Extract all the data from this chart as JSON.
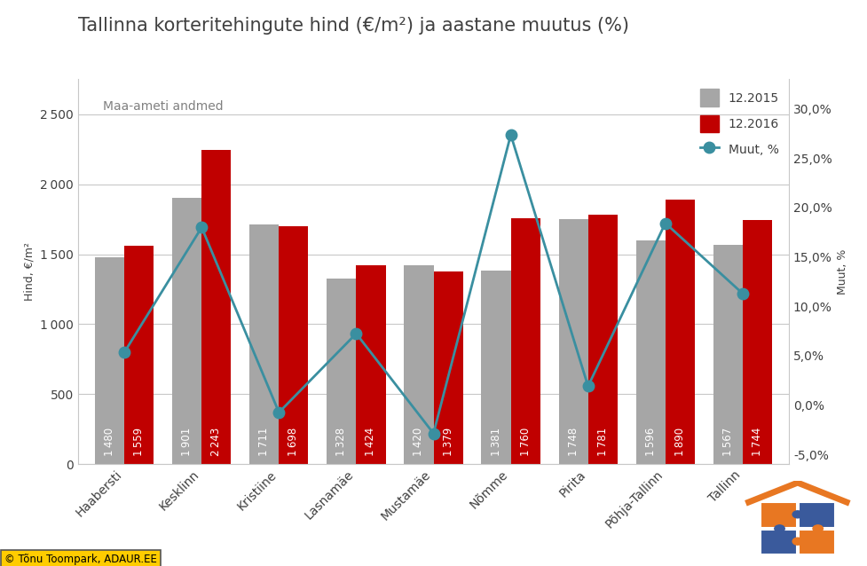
{
  "title": "Tallinna korteritehingute hind (€/m²) ja aastane muutus (%)",
  "subtitle": "Maa-ameti andmed",
  "ylabel_left": "Hind, €/m²",
  "ylabel_right": "Muut, %",
  "categories": [
    "Haabersti",
    "Kesklinn",
    "Kristiine",
    "Lasnamäe",
    "Mustamäe",
    "Nõmme",
    "Pirita",
    "Põhja-Tallinn",
    "Tallinn"
  ],
  "values_2015": [
    1480,
    1901,
    1711,
    1328,
    1420,
    1381,
    1748,
    1596,
    1567
  ],
  "values_2016": [
    1559,
    2243,
    1698,
    1424,
    1379,
    1760,
    1781,
    1890,
    1744
  ],
  "pct_change": [
    5.34,
    17.99,
    -0.76,
    7.23,
    -2.89,
    27.37,
    1.89,
    18.42,
    11.29
  ],
  "color_2015": "#a6a6a6",
  "color_2016": "#c00000",
  "color_line": "#3a8fa0",
  "ylim_left": [
    0,
    2750
  ],
  "ylim_right": [
    -0.06,
    0.33
  ],
  "yticks_left": [
    0,
    500,
    1000,
    1500,
    2000,
    2500
  ],
  "yticks_right": [
    -0.05,
    0.0,
    0.05,
    0.1,
    0.15,
    0.2,
    0.25,
    0.3
  ],
  "bar_width": 0.38,
  "background_color": "#ffffff",
  "grid_color": "#c8c8c8",
  "label_2015": "12.2015",
  "label_2016": "12.2016",
  "label_line": "Muut, %",
  "title_fontsize": 15,
  "axis_label_fontsize": 9,
  "tick_label_fontsize": 10,
  "bar_label_fontsize": 8.5,
  "text_color": "#404040"
}
